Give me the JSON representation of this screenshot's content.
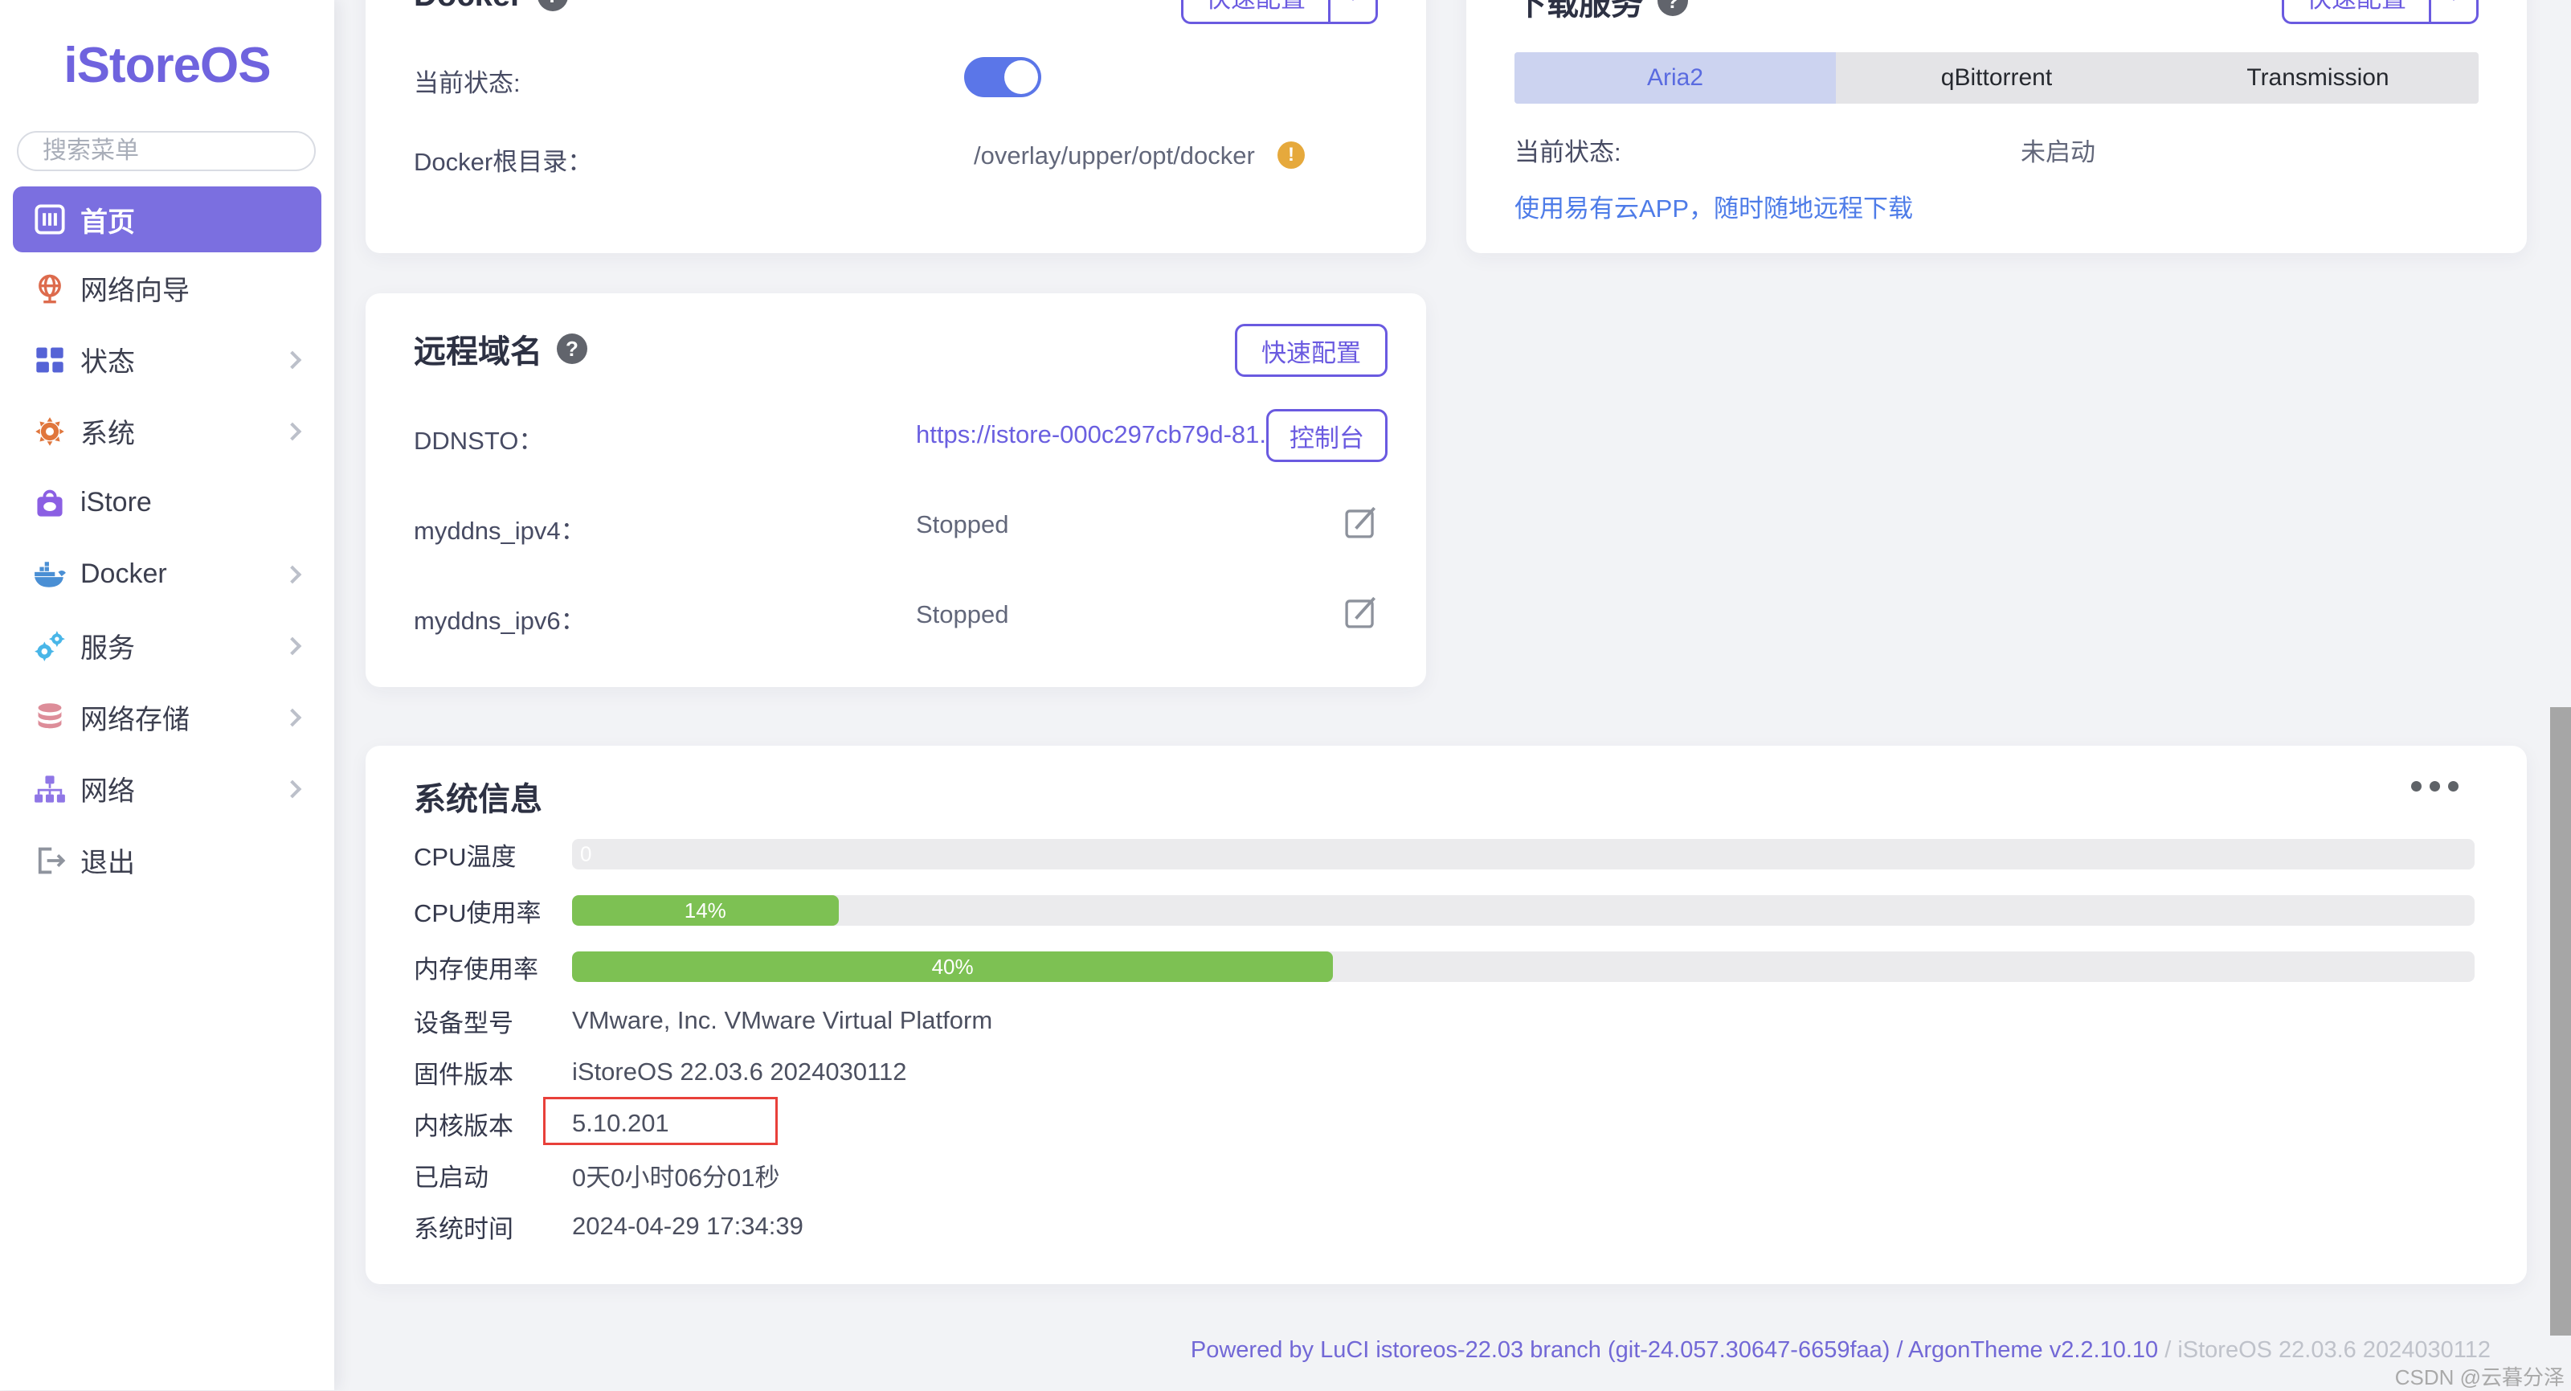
{
  "colors": {
    "accent_purple": "#7b6fe0",
    "link_purple": "#6a5fe0",
    "link_blue": "#4e7ce8",
    "progress_green": "#7dc153",
    "toggle_blue": "#5b76e8",
    "warning_orange": "#e6a93c",
    "annotation_red": "#e8403a"
  },
  "sidebar": {
    "logo": "iStoreOS",
    "search": {
      "placeholder": "搜索菜单"
    },
    "items": [
      {
        "label": "首页"
      },
      {
        "label": "网络向导"
      },
      {
        "label": "状态"
      },
      {
        "label": "系统"
      },
      {
        "label": "iStore"
      },
      {
        "label": "Docker"
      },
      {
        "label": "服务"
      },
      {
        "label": "网络存储"
      },
      {
        "label": "网络"
      },
      {
        "label": "退出"
      }
    ]
  },
  "docker_card": {
    "title": "Docker",
    "quick_config": "快速配置",
    "status_label": "当前状态:",
    "toggle_state": "on",
    "root_label": "Docker根目录：",
    "root_value": "/overlay/upper/opt/docker"
  },
  "download_card": {
    "title": "下载服务",
    "quick_config": "快速配置",
    "tabs": [
      {
        "label": "Aria2"
      },
      {
        "label": "qBittorrent"
      },
      {
        "label": "Transmission"
      }
    ],
    "active_tab": "Aria2",
    "status_label": "当前状态:",
    "status_value": "未启动",
    "promo_link": "使用易有云APP，随时随地远程下载"
  },
  "remote_card": {
    "title": "远程域名",
    "quick_config": "快速配置",
    "ddnsto_label": "DDNSTO：",
    "ddnsto_url": "https://istore-000c297cb79d-81.k...",
    "console_button": "控制台",
    "ipv4_label": "myddns_ipv4：",
    "ipv4_status": "Stopped",
    "ipv6_label": "myddns_ipv6：",
    "ipv6_status": "Stopped"
  },
  "sysinfo_card": {
    "title": "系统信息",
    "cpu_temp": {
      "label": "CPU温度",
      "percent": 0,
      "text": "0"
    },
    "cpu_usage": {
      "label": "CPU使用率",
      "percent": 14,
      "text": "14%"
    },
    "mem_usage": {
      "label": "内存使用率",
      "percent": 40,
      "text": "40%"
    },
    "model": {
      "label": "设备型号",
      "value": "VMware, Inc. VMware Virtual Platform"
    },
    "firmware": {
      "label": "固件版本",
      "value": "iStoreOS 22.03.6 2024030112"
    },
    "kernel": {
      "label": "内核版本",
      "value": "5.10.201"
    },
    "uptime": {
      "label": "已启动",
      "value": "0天0小时06分01秒"
    },
    "localtime": {
      "label": "系统时间",
      "value": "2024-04-29 17:34:39"
    }
  },
  "footer": {
    "link_part": "Powered by LuCI istoreos-22.03 branch (git-24.057.30647-6659faa) / ArgonTheme v2.2.10.10",
    "plain_part": " / iStoreOS 22.03.6 2024030112"
  },
  "watermark": "CSDN @云暮分泽"
}
